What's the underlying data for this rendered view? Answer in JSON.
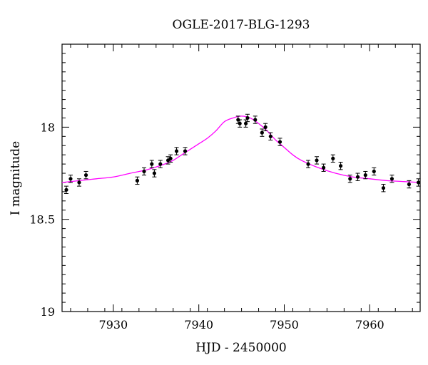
{
  "chart_data": {
    "type": "scatter",
    "title": "OGLE-2017-BLG-1293",
    "xlabel": "HJD - 2450000",
    "ylabel": "I magnitude",
    "xlim": [
      7924.0,
      7965.9
    ],
    "ylim": [
      19.0,
      17.55
    ],
    "y_inverted": true,
    "x_ticks": [
      7930,
      7940,
      7950,
      7960
    ],
    "x_tick_labels": [
      "7930",
      "7940",
      "7950",
      "7960"
    ],
    "y_ticks": [
      18.0,
      18.5,
      19.0
    ],
    "y_tick_labels": [
      "18",
      "18.5",
      "19"
    ],
    "grid": false,
    "model_color": "#ff00ff",
    "point_color": "#000000",
    "model_curve": {
      "x": [
        7924.0,
        7926,
        7928,
        7930,
        7932,
        7934,
        7936,
        7937,
        7938,
        7939,
        7940,
        7941,
        7942,
        7943,
        7944,
        7945,
        7946,
        7947,
        7948,
        7949,
        7950,
        7951,
        7952,
        7954,
        7956,
        7958,
        7960,
        7962,
        7964,
        7965.9
      ],
      "y": [
        18.3,
        18.29,
        18.28,
        18.27,
        18.25,
        18.23,
        18.2,
        18.18,
        18.15,
        18.12,
        18.09,
        18.06,
        18.02,
        17.97,
        17.95,
        17.94,
        17.95,
        17.98,
        18.02,
        18.07,
        18.11,
        18.15,
        18.18,
        18.22,
        18.25,
        18.27,
        18.28,
        18.29,
        18.295,
        18.3
      ]
    },
    "points": {
      "x": [
        7924.5,
        7925.0,
        7926.0,
        7926.8,
        7932.8,
        7933.6,
        7934.5,
        7934.8,
        7935.5,
        7936.4,
        7936.7,
        7937.4,
        7938.4,
        7944.6,
        7944.8,
        7945.5,
        7945.7,
        7946.6,
        7947.4,
        7947.8,
        7948.4,
        7949.5,
        7952.8,
        7953.8,
        7954.6,
        7955.7,
        7956.6,
        7957.7,
        7958.6,
        7959.5,
        7960.5,
        7961.6,
        7962.6,
        7964.6,
        7965.7
      ],
      "y": [
        18.34,
        18.28,
        18.3,
        18.26,
        18.29,
        18.24,
        18.2,
        18.25,
        18.2,
        18.18,
        18.17,
        18.13,
        18.13,
        17.96,
        17.98,
        17.98,
        17.95,
        17.96,
        18.03,
        18.0,
        18.05,
        18.08,
        18.2,
        18.18,
        18.22,
        18.17,
        18.21,
        18.28,
        18.27,
        18.26,
        18.24,
        18.33,
        18.28,
        18.31,
        18.3
      ],
      "yerr": [
        0.02,
        0.02,
        0.02,
        0.02,
        0.02,
        0.02,
        0.02,
        0.02,
        0.02,
        0.02,
        0.02,
        0.02,
        0.02,
        0.02,
        0.02,
        0.02,
        0.02,
        0.02,
        0.02,
        0.02,
        0.02,
        0.02,
        0.02,
        0.02,
        0.02,
        0.02,
        0.02,
        0.02,
        0.02,
        0.02,
        0.02,
        0.02,
        0.02,
        0.02,
        0.02
      ]
    }
  }
}
